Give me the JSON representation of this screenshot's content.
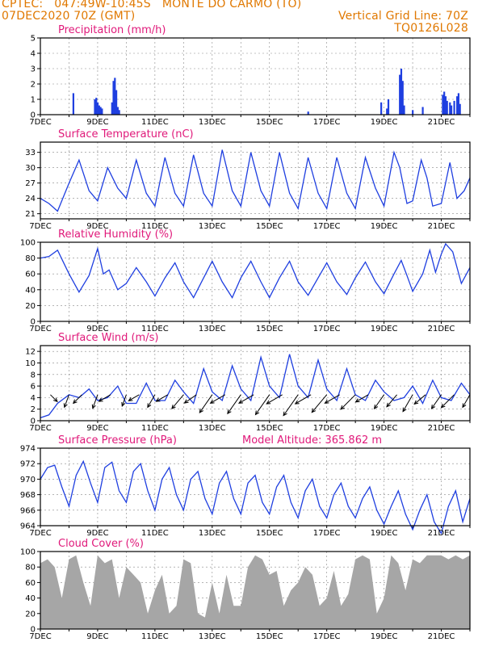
{
  "header": {
    "line1_left": "CPTEC:   047:49W-10:45S   MONTE DO CARMO (TO)",
    "line2_left": "07DEC2020 70Z (GMT)",
    "line2_right": "Vertical Grid Line: 70Z",
    "line3_right": "TQ0126L028"
  },
  "x_axis": {
    "date_labels": [
      "7DEC",
      "9DEC",
      "11DEC",
      "13DEC",
      "15DEC",
      "17DEC",
      "19DEC",
      "21DEC"
    ],
    "day_start": 7,
    "day_end": 22
  },
  "chart_data": [
    {
      "type": "bar",
      "title": "Precipitation (mm/h)",
      "ylim": [
        0,
        5
      ],
      "yticks": [
        0,
        1,
        2,
        3,
        4,
        5
      ],
      "color": "#1f3fe0",
      "x": [
        8.15,
        8.9,
        8.95,
        9.0,
        9.05,
        9.1,
        9.15,
        9.5,
        9.55,
        9.6,
        9.65,
        9.7,
        9.75,
        16.35,
        18.9,
        19.1,
        19.15,
        19.55,
        19.6,
        19.65,
        19.7,
        20.0,
        20.35,
        21.05,
        21.1,
        21.15,
        21.2,
        21.3,
        21.35,
        21.45,
        21.55,
        21.6,
        21.65
      ],
      "values": [
        1.4,
        1.0,
        1.1,
        0.8,
        0.6,
        0.5,
        0.4,
        0.8,
        2.2,
        2.4,
        1.6,
        0.5,
        0.3,
        0.2,
        0.8,
        0.4,
        1.0,
        2.6,
        3.0,
        2.2,
        0.6,
        0.3,
        0.5,
        1.3,
        1.5,
        1.2,
        0.9,
        0.8,
        0.6,
        0.9,
        1.2,
        1.4,
        0.7
      ]
    },
    {
      "type": "line",
      "title": "Surface Temperature (nC)",
      "ylim": [
        20,
        35
      ],
      "yticks": [
        21,
        24,
        27,
        30,
        33
      ],
      "color": "#1f3fe0",
      "x": [
        7.0,
        7.3,
        7.6,
        8.0,
        8.35,
        8.7,
        9.0,
        9.35,
        9.7,
        10.0,
        10.35,
        10.7,
        11.0,
        11.35,
        11.7,
        12.0,
        12.35,
        12.7,
        13.0,
        13.35,
        13.7,
        14.0,
        14.35,
        14.7,
        15.0,
        15.35,
        15.7,
        16.0,
        16.35,
        16.7,
        17.0,
        17.35,
        17.7,
        18.0,
        18.35,
        18.7,
        19.0,
        19.35,
        19.55,
        19.8,
        20.0,
        20.3,
        20.5,
        20.7,
        21.0,
        21.3,
        21.55,
        21.8,
        22.0
      ],
      "values": [
        24.0,
        23.0,
        21.5,
        27.0,
        31.5,
        25.5,
        23.5,
        30.0,
        26.0,
        24.0,
        31.5,
        25.0,
        22.5,
        32.0,
        25.0,
        22.5,
        32.5,
        25.0,
        22.5,
        33.5,
        25.5,
        22.5,
        33.0,
        25.5,
        22.5,
        33.0,
        25.0,
        22.0,
        32.0,
        25.0,
        22.0,
        32.0,
        25.0,
        22.0,
        32.0,
        26.0,
        22.5,
        33.0,
        30.0,
        23.0,
        23.5,
        31.5,
        28.0,
        22.5,
        23.0,
        31.0,
        24.0,
        25.5,
        28.0
      ]
    },
    {
      "type": "line",
      "title": "Relative Humidity (%)",
      "ylim": [
        0,
        100
      ],
      "yticks": [
        0,
        20,
        40,
        60,
        80,
        100
      ],
      "color": "#1f3fe0",
      "x": [
        7.0,
        7.3,
        7.6,
        8.0,
        8.35,
        8.7,
        9.0,
        9.2,
        9.4,
        9.7,
        10.0,
        10.35,
        10.7,
        11.0,
        11.35,
        11.7,
        12.0,
        12.35,
        12.7,
        13.0,
        13.35,
        13.7,
        14.0,
        14.35,
        14.7,
        15.0,
        15.35,
        15.7,
        16.0,
        16.35,
        16.7,
        17.0,
        17.35,
        17.7,
        18.0,
        18.35,
        18.7,
        19.0,
        19.35,
        19.6,
        19.8,
        20.0,
        20.35,
        20.6,
        20.8,
        21.0,
        21.15,
        21.4,
        21.7,
        22.0
      ],
      "values": [
        80.0,
        82.0,
        90.0,
        60.0,
        37.0,
        58.0,
        92.0,
        60.0,
        65.0,
        40.0,
        48.0,
        68.0,
        50.0,
        32.0,
        55.0,
        74.0,
        50.0,
        30.0,
        55.0,
        76.0,
        50.0,
        30.0,
        55.0,
        76.0,
        50.0,
        30.0,
        55.0,
        76.0,
        50.0,
        33.0,
        55.0,
        74.0,
        50.0,
        34.0,
        55.0,
        75.0,
        50.0,
        35.0,
        60.0,
        77.0,
        58.0,
        38.0,
        60.0,
        90.0,
        62.0,
        85.0,
        98.0,
        88.0,
        48.0,
        68.0
      ]
    },
    {
      "type": "line",
      "title": "Surface Wind (m/s)",
      "ylim": [
        0,
        13
      ],
      "yticks": [
        0,
        2,
        4,
        6,
        8,
        10,
        12
      ],
      "color": "#1f3fe0",
      "x": [
        7.0,
        7.3,
        7.6,
        8.0,
        8.35,
        8.7,
        9.0,
        9.35,
        9.7,
        10.0,
        10.35,
        10.7,
        11.0,
        11.35,
        11.7,
        12.0,
        12.35,
        12.7,
        13.0,
        13.35,
        13.7,
        14.0,
        14.35,
        14.7,
        15.0,
        15.35,
        15.7,
        16.0,
        16.35,
        16.7,
        17.0,
        17.35,
        17.7,
        18.0,
        18.35,
        18.7,
        19.0,
        19.35,
        19.7,
        20.0,
        20.35,
        20.7,
        21.0,
        21.35,
        21.7,
        22.0
      ],
      "values": [
        0.5,
        1.0,
        3.0,
        4.5,
        4.0,
        5.5,
        3.5,
        4.0,
        6.0,
        3.0,
        3.0,
        6.5,
        3.5,
        3.5,
        7.0,
        5.0,
        3.0,
        9.0,
        5.0,
        3.5,
        9.5,
        5.5,
        3.5,
        11.0,
        6.0,
        4.0,
        11.5,
        6.0,
        4.0,
        10.5,
        5.5,
        3.5,
        9.0,
        4.5,
        3.5,
        7.0,
        5.0,
        3.5,
        4.0,
        6.0,
        3.0,
        7.0,
        4.0,
        3.5,
        6.5,
        4.5
      ]
    },
    {
      "type": "line",
      "title": "Surface Pressure (hPa)",
      "subtitle": "Model Altitude: 365.862  m",
      "ylim": [
        964,
        974
      ],
      "yticks": [
        964,
        966,
        968,
        970,
        972,
        974
      ],
      "color": "#1f3fe0",
      "x": [
        7.0,
        7.25,
        7.5,
        7.75,
        8.0,
        8.25,
        8.5,
        8.75,
        9.0,
        9.25,
        9.5,
        9.75,
        10.0,
        10.25,
        10.5,
        10.75,
        11.0,
        11.25,
        11.5,
        11.75,
        12.0,
        12.25,
        12.5,
        12.75,
        13.0,
        13.25,
        13.5,
        13.75,
        14.0,
        14.25,
        14.5,
        14.75,
        15.0,
        15.25,
        15.5,
        15.75,
        16.0,
        16.25,
        16.5,
        16.75,
        17.0,
        17.25,
        17.5,
        17.75,
        18.0,
        18.25,
        18.5,
        18.75,
        19.0,
        19.25,
        19.5,
        19.75,
        20.0,
        20.25,
        20.5,
        20.75,
        21.0,
        21.25,
        21.5,
        21.75,
        22.0
      ],
      "values": [
        970.0,
        971.5,
        971.8,
        969.0,
        966.5,
        970.5,
        972.3,
        969.5,
        967.0,
        971.5,
        972.2,
        968.5,
        967.0,
        971.0,
        972.0,
        968.5,
        966.0,
        970.0,
        971.5,
        968.0,
        966.0,
        970.0,
        971.0,
        967.5,
        965.5,
        969.5,
        971.0,
        967.5,
        965.5,
        969.5,
        970.5,
        967.0,
        965.5,
        969.0,
        970.5,
        967.0,
        965.0,
        968.5,
        970.0,
        966.5,
        965.0,
        968.0,
        969.5,
        966.5,
        965.0,
        967.5,
        969.0,
        966.0,
        964.2,
        966.5,
        968.5,
        965.5,
        963.5,
        966.0,
        968.0,
        964.5,
        963.0,
        966.5,
        968.5,
        964.5,
        967.5
      ]
    },
    {
      "type": "area",
      "title": "Cloud Cover (%)",
      "ylim": [
        0,
        100
      ],
      "yticks": [
        0,
        20,
        40,
        60,
        80,
        100
      ],
      "color": "#a6a6a6",
      "x": [
        7.0,
        7.25,
        7.5,
        7.75,
        8.0,
        8.25,
        8.5,
        8.75,
        9.0,
        9.25,
        9.5,
        9.75,
        10.0,
        10.25,
        10.5,
        10.75,
        11.0,
        11.25,
        11.5,
        11.75,
        12.0,
        12.25,
        12.5,
        12.75,
        13.0,
        13.25,
        13.5,
        13.75,
        14.0,
        14.25,
        14.5,
        14.75,
        15.0,
        15.25,
        15.5,
        15.75,
        16.0,
        16.25,
        16.5,
        16.75,
        17.0,
        17.25,
        17.5,
        17.75,
        18.0,
        18.25,
        18.5,
        18.75,
        19.0,
        19.25,
        19.5,
        19.75,
        20.0,
        20.25,
        20.5,
        20.75,
        21.0,
        21.25,
        21.5,
        21.75,
        22.0
      ],
      "values": [
        85,
        90,
        80,
        40,
        90,
        95,
        60,
        30,
        95,
        85,
        90,
        40,
        80,
        70,
        60,
        20,
        50,
        70,
        20,
        30,
        90,
        85,
        20,
        15,
        60,
        20,
        70,
        30,
        30,
        80,
        95,
        90,
        70,
        75,
        30,
        50,
        60,
        80,
        70,
        30,
        40,
        75,
        30,
        45,
        90,
        95,
        90,
        20,
        40,
        95,
        85,
        50,
        90,
        85,
        95,
        95,
        95,
        90,
        95,
        90,
        95
      ]
    }
  ],
  "wind_barbs": {
    "x": [
      7.35,
      8.0,
      8.45,
      9.0,
      9.45,
      10.0,
      10.45,
      11.0,
      11.45,
      12.0,
      12.45,
      13.0,
      13.45,
      14.0,
      14.45,
      15.0,
      15.45,
      16.0,
      16.45,
      17.0,
      17.45,
      18.0,
      18.45,
      19.0,
      19.45,
      20.0,
      20.45,
      21.0,
      21.45,
      22.0
    ],
    "speed": [
      2.0,
      3.5,
      3.0,
      4.0,
      3.5,
      3.0,
      3.0,
      4.0,
      3.5,
      5.5,
      4.0,
      7.0,
      5.0,
      7.5,
      5.0,
      8.0,
      5.5,
      8.5,
      5.5,
      7.5,
      5.0,
      6.5,
      4.0,
      5.0,
      4.5,
      6.0,
      4.0,
      5.0,
      5.5,
      4.0
    ],
    "dir_deg": [
      135,
      200,
      225,
      200,
      240,
      200,
      240,
      210,
      240,
      220,
      235,
      215,
      240,
      215,
      240,
      215,
      240,
      215,
      240,
      220,
      240,
      225,
      240,
      215,
      220,
      210,
      230,
      215,
      225,
      210
    ]
  }
}
